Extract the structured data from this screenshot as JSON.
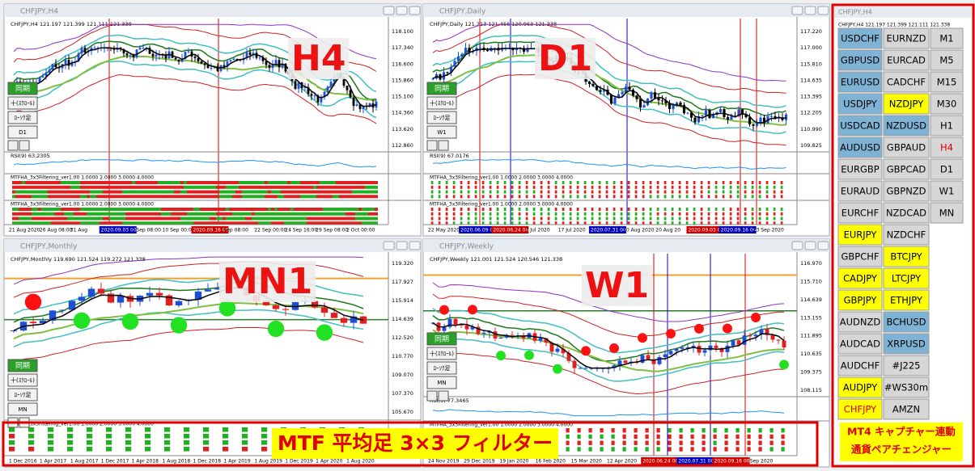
{
  "windows": [
    {
      "title": "CHFJPY,H4",
      "info": "CHFJPY,H4  121.197 121.399 121.111 121.338",
      "label": "H4",
      "prices": [
        "118.100",
        "117.340",
        "116.600",
        "115.860",
        "115.100",
        "114.360",
        "113.620",
        "112.860"
      ],
      "times": [
        "21 Aug 2020",
        "26 Aug 08:00",
        "31 Aug",
        "2020.09.03 00:00",
        "7 Sep 08:00",
        "10 Sep 00:00",
        "2020.09.16 00:00",
        "Sep 08:00",
        "22 Sep 00:00",
        "24 Sep 16:00",
        "29 Sep 08:00",
        "2 Oct 00:00"
      ],
      "rsi": "RSI(9) 63.2305",
      "mtf": [
        "MTFHA_3x3Filtering_ver1.00 1.0000 2.0000 3.0000 4.0000",
        "MTFHA_3x3Filtering_ver1.00 1.0000 2.0000 3.0000 4.0000"
      ],
      "buttons": [
        "同期",
        "十(ｽｸﾛｰﾙ)",
        "ﾛｰｿｸ足",
        "D1"
      ]
    },
    {
      "title": "CHFJPY,Daily",
      "info": "CHFJPY,Daily  121.213 121.456 120.963 121.338",
      "label": "D1",
      "prices": [
        "117.220",
        "117.000",
        "115.810",
        "114.635",
        "113.395",
        "112.205",
        "110.990",
        "109.825"
      ],
      "times": [
        "22 May 2020",
        "2020.06.09 00:00",
        "2020.06.24 00:00",
        "7 Jul 2020",
        "17 Jul 2020",
        "2020.07.31 00:00",
        "10 Aug 2020",
        "20 Aug 20",
        "2020.09.03 00:00",
        "2020.09.16 00:00",
        "23 Sep 2020"
      ],
      "rsi": "RSI(9) 67.0176",
      "mtf": [
        "MTFHA_3x3Filtering_ver1.00 1.0000 2.0000 3.0000 4.0000",
        "MTFHA_3x3Filtering_ver1.00 1.0000 2.0000 3.0000 4.0000"
      ],
      "buttons": [
        "同期",
        "十(ｽｸﾛｰﾙ)",
        "ﾛｰｿｸ足",
        "W1"
      ]
    },
    {
      "title": "CHFJPY,Monthly",
      "info": "CHFJPY,Monthly  119.690 121.524 119.272 121.338",
      "label": "MN1",
      "prices": [
        "119.320",
        "117.927",
        "115.914",
        "114.639",
        "112.520",
        "110.770",
        "109.070",
        "107.370",
        "105.670"
      ],
      "times": [
        "1 Dec 2016",
        "1 Apr 2017",
        "1 Aug 2017",
        "1 Dec 2017",
        "1 Apr 2018",
        "1 Aug 2018",
        "1 Dec 2018",
        "1 Apr 2019",
        "1 Aug 2019",
        "1 Dec 2019",
        "1 Apr 2020",
        "1 Aug 2020"
      ],
      "mtf": [
        "MTFHA_3x3Filtering_ver1.00 1.0000 2.0000 3.0000 4.0000"
      ],
      "buttons": [
        "同期",
        "十(ｽｸﾛｰﾙ)",
        "ﾛｰｿｸ足",
        "MN"
      ]
    },
    {
      "title": "CHFJPY,Weekly",
      "info": "CHFJPY,Weekly  121.001 121.524 120.546 121.338",
      "label": "W1",
      "prices": [
        "116.970",
        "115.710",
        "114.639",
        "113.155",
        "111.895",
        "110.635",
        "109.375",
        "108.115"
      ],
      "times": [
        "24 Nov 2019",
        "29 Dec 2019",
        "19 Jan 2020",
        "16 Feb 2020",
        "15 Mar 2020",
        "12 Apr 2020",
        "2020.06.24 00:00",
        "2020.07.31 00:00",
        "2020.09.16 00:00",
        "Sep 2020"
      ],
      "rsi": "RSI(9) 77.3465",
      "mtf": [
        "MTFHA_3x3Filtering_ver1.00 1.0000 2.0000 3.0000 4.0000"
      ],
      "buttons": [
        "同期",
        "十(ｽｸﾛｰﾙ)",
        "ﾛｰｿｸ足",
        "MN"
      ]
    }
  ],
  "symbols": {
    "title": "CHFJPY,H4",
    "info": "CHFJPY,H4  121.197 121.399 121.111 121.338",
    "rows": [
      [
        {
          "label": "USDCHF",
          "color": "#7fb3d5"
        },
        {
          "label": "EURNZD",
          "color": "#d6d6d6"
        },
        {
          "label": "M1",
          "color": "#d6d6d6"
        }
      ],
      [
        {
          "label": "GBPUSD",
          "color": "#7fb3d5"
        },
        {
          "label": "EURCAD",
          "color": "#d6d6d6"
        },
        {
          "label": "M5",
          "color": "#d6d6d6"
        }
      ],
      [
        {
          "label": "EURUSD",
          "color": "#7fb3d5"
        },
        {
          "label": "CADCHF",
          "color": "#d6d6d6"
        },
        {
          "label": "M15",
          "color": "#d6d6d6"
        }
      ],
      [
        {
          "label": "USDJPY",
          "color": "#7fb3d5"
        },
        {
          "label": "NZDJPY",
          "color": "#ffff00"
        },
        {
          "label": "M30",
          "color": "#d6d6d6"
        }
      ],
      [
        {
          "label": "USDCAD",
          "color": "#7fb3d5"
        },
        {
          "label": "NZDUSD",
          "color": "#7fb3d5"
        },
        {
          "label": "H1",
          "color": "#d6d6d6"
        }
      ],
      [
        {
          "label": "AUDUSD",
          "color": "#7fb3d5"
        },
        {
          "label": "GBPAUD",
          "color": "#d6d6d6"
        },
        {
          "label": "H4",
          "color": "#d6d6d6",
          "text_color": "#e00000"
        }
      ],
      [
        {
          "label": "EURGBP",
          "color": "#d6d6d6"
        },
        {
          "label": "GBPCAD",
          "color": "#d6d6d6"
        },
        {
          "label": "D1",
          "color": "#d6d6d6"
        }
      ],
      [
        {
          "label": "EURAUD",
          "color": "#d6d6d6"
        },
        {
          "label": "GBPNZD",
          "color": "#d6d6d6"
        },
        {
          "label": "W1",
          "color": "#d6d6d6"
        }
      ],
      [
        {
          "label": "EURCHF",
          "color": "#d6d6d6"
        },
        {
          "label": "NZDCAD",
          "color": "#d6d6d6"
        },
        {
          "label": "MN",
          "color": "#d6d6d6"
        }
      ],
      [
        {
          "label": "EURJPY",
          "color": "#ffff00"
        },
        {
          "label": "NZDCHF",
          "color": "#d6d6d6"
        }
      ],
      [
        {
          "label": "GBPCHF",
          "color": "#d6d6d6"
        },
        {
          "label": "BTCJPY",
          "color": "#ffff00"
        }
      ],
      [
        {
          "label": "CADJPY",
          "color": "#ffff00"
        },
        {
          "label": "LTCJPY",
          "color": "#ffff00"
        }
      ],
      [
        {
          "label": "GBPJPY",
          "color": "#ffff00"
        },
        {
          "label": "ETHJPY",
          "color": "#ffff00"
        }
      ],
      [
        {
          "label": "AUDNZD",
          "color": "#d6d6d6"
        },
        {
          "label": "BCHUSD",
          "color": "#7fb3d5"
        }
      ],
      [
        {
          "label": "AUDCAD",
          "color": "#d6d6d6"
        },
        {
          "label": "XRPUSD",
          "color": "#7fb3d5"
        }
      ],
      [
        {
          "label": "AUDCHF",
          "color": "#d6d6d6"
        },
        {
          "label": "#J225",
          "color": "#d6d6d6"
        }
      ],
      [
        {
          "label": "AUDJPY",
          "color": "#ffff00"
        },
        {
          "label": "#WS30m",
          "color": "#d6d6d6"
        }
      ],
      [
        {
          "label": "CHFJPY",
          "color": "#ffff00",
          "text_color": "#e00000"
        },
        {
          "label": "AMZN",
          "color": "#d6d6d6"
        }
      ]
    ]
  },
  "banner": "MTF 平均足 3×3 フィルター",
  "note": [
    "MT4 キャプチャー連動",
    "通貨ペアチェンジャー"
  ]
}
